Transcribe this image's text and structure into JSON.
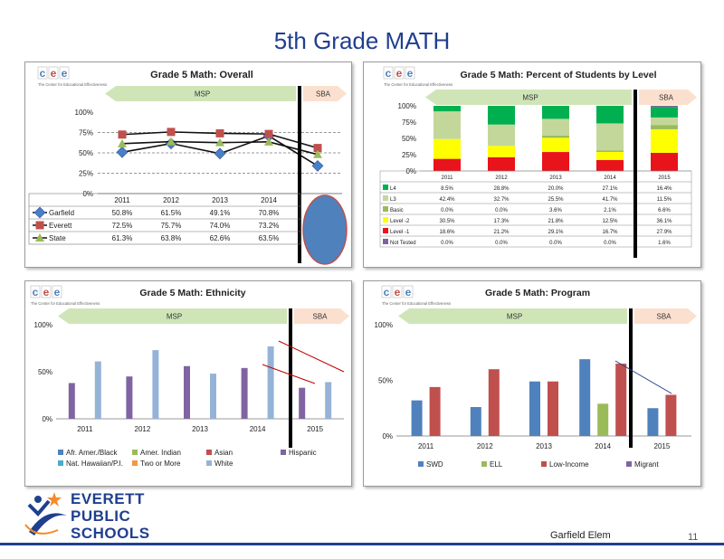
{
  "page": {
    "title": "5th Grade MATH",
    "school": "Garfield Elem",
    "page_number": "11"
  },
  "brand": {
    "cee_letters": [
      "c",
      "e",
      "e"
    ],
    "cee_tagline": "The Center for Educational Effectiveness",
    "district_lines": [
      "EVERETT",
      "PUBLIC",
      "SCHOOLS"
    ],
    "colors": {
      "title": "#1f3f8f",
      "msp_arrow": "#cfe5b8",
      "sba_arrow": "#fbe0cf"
    }
  },
  "charts": {
    "overall": {
      "title": "Grade 5 Math: Overall",
      "msp_label": "MSP",
      "sba_label": "SBA",
      "chart_data": {
        "type": "line",
        "title": "Grade 5 Math: Overall",
        "categories": [
          "2011",
          "2012",
          "2013",
          "2014",
          "2015"
        ],
        "ylim": [
          0,
          100
        ],
        "y_ticks": [
          "0%",
          "25%",
          "50%",
          "75%",
          "100%"
        ],
        "grid": true,
        "series": [
          {
            "name": "Garfield",
            "color": "#4a7ec7",
            "marker": "diamond",
            "values": [
              50.8,
              61.5,
              49.1,
              70.8,
              34
            ]
          },
          {
            "name": "Everett",
            "color": "#c0504d",
            "marker": "square",
            "values": [
              72.5,
              75.7,
              74.0,
              73.2,
              56
            ]
          },
          {
            "name": "State",
            "color": "#9bbb59",
            "marker": "triangle",
            "values": [
              61.3,
              63.8,
              62.6,
              63.5,
              48
            ]
          }
        ],
        "table": [
          {
            "name": "Garfield",
            "cells": [
              "50.8%",
              "61.5%",
              "49.1%",
              "70.8%"
            ]
          },
          {
            "name": "Everett",
            "cells": [
              "72.5%",
              "75.7%",
              "74.0%",
              "73.2%"
            ]
          },
          {
            "name": "State",
            "cells": [
              "61.3%",
              "63.8%",
              "62.6%",
              "63.5%"
            ]
          }
        ]
      }
    },
    "levels": {
      "title": "Grade 5 Math: Percent of Students by Level",
      "msp_label": "MSP",
      "sba_label": "SBA",
      "chart_data": {
        "type": "bar",
        "stacked": true,
        "title": "Grade 5 Math: Percent of Students by Level",
        "categories": [
          "2011",
          "2012",
          "2013",
          "2014",
          "2015"
        ],
        "ylim": [
          0,
          100
        ],
        "y_ticks": [
          "0%",
          "25%",
          "50%",
          "75%",
          "100%"
        ],
        "series": [
          {
            "name": "Level -1",
            "color": "#e8131b",
            "values": [
              18.6,
              21.2,
              29.1,
              16.7,
              27.9
            ],
            "cells": [
              "18.6%",
              "21.2%",
              "29.1%",
              "16.7%",
              "27.9%"
            ]
          },
          {
            "name": "Level -2",
            "color": "#ffff00",
            "values": [
              30.5,
              17.3,
              21.8,
              12.5,
              36.1
            ],
            "cells": [
              "30.5%",
              "17.3%",
              "21.8%",
              "12.5%",
              "36.1%"
            ]
          },
          {
            "name": "Basic",
            "color": "#9bbb59",
            "values": [
              0.0,
              0.0,
              3.6,
              2.1,
              6.6
            ],
            "cells": [
              "0.0%",
              "0.0%",
              "3.6%",
              "2.1%",
              "6.6%"
            ]
          },
          {
            "name": "L3",
            "color": "#c4d79b",
            "values": [
              42.4,
              32.7,
              25.5,
              41.7,
              11.5
            ],
            "cells": [
              "42.4%",
              "32.7%",
              "25.5%",
              "41.7%",
              "11.5%"
            ]
          },
          {
            "name": "L4",
            "color": "#00b050",
            "values": [
              8.5,
              28.8,
              20.0,
              27.1,
              16.4
            ],
            "cells": [
              "8.5%",
              "28.8%",
              "20.0%",
              "27.1%",
              "16.4%"
            ]
          },
          {
            "name": "Not Tested",
            "color": "#8064a2",
            "values": [
              0.0,
              0.0,
              0.0,
              0.0,
              1.6
            ],
            "cells": [
              "0.0%",
              "0.0%",
              "0.0%",
              "0.0%",
              "1.6%"
            ]
          }
        ]
      }
    },
    "ethnicity": {
      "title": "Grade 5 Math: Ethnicity",
      "msp_label": "MSP",
      "sba_label": "SBA",
      "chart_data": {
        "type": "bar",
        "title": "Grade 5 Math: Ethnicity",
        "categories": [
          "2011",
          "2012",
          "2013",
          "2014",
          "2015"
        ],
        "ylim": [
          0,
          100
        ],
        "y_ticks": [
          "0%",
          "50%",
          "100%"
        ],
        "series": [
          {
            "name": "Afr. Amer./Black",
            "color": "#4f81bd",
            "values": [
              null,
              null,
              null,
              null,
              null
            ]
          },
          {
            "name": "Amer. Indian",
            "color": "#9bbb59",
            "values": [
              null,
              null,
              null,
              null,
              null
            ]
          },
          {
            "name": "Asian",
            "color": "#c0504d",
            "values": [
              null,
              null,
              null,
              null,
              null
            ]
          },
          {
            "name": "Hispanic",
            "color": "#8064a2",
            "values": [
              38,
              45,
              56,
              54,
              33
            ]
          },
          {
            "name": "Nat. Hawaiian/P.I.",
            "color": "#4bacc6",
            "values": [
              null,
              null,
              null,
              null,
              null
            ]
          },
          {
            "name": "Two or More",
            "color": "#f79646",
            "values": [
              null,
              null,
              null,
              null,
              null
            ]
          },
          {
            "name": "White",
            "color": "#95b3d7",
            "values": [
              61,
              73,
              48,
              77,
              39
            ]
          }
        ]
      }
    },
    "program": {
      "title": "Grade 5 Math: Program",
      "msp_label": "MSP",
      "sba_label": "SBA",
      "chart_data": {
        "type": "bar",
        "title": "Grade 5 Math: Program",
        "categories": [
          "2011",
          "2012",
          "2013",
          "2014",
          "2015"
        ],
        "ylim": [
          0,
          100
        ],
        "y_ticks": [
          "0%",
          "50%",
          "100%"
        ],
        "series": [
          {
            "name": "SWD",
            "color": "#4f81bd",
            "values": [
              32,
              26,
              49,
              69,
              25
            ]
          },
          {
            "name": "ELL",
            "color": "#9bbb59",
            "values": [
              null,
              null,
              null,
              29,
              null
            ]
          },
          {
            "name": "Low-Income",
            "color": "#c0504d",
            "values": [
              44,
              60,
              49,
              65,
              37
            ]
          },
          {
            "name": "Migrant",
            "color": "#8064a2",
            "values": [
              null,
              null,
              null,
              null,
              null
            ]
          }
        ]
      }
    }
  }
}
